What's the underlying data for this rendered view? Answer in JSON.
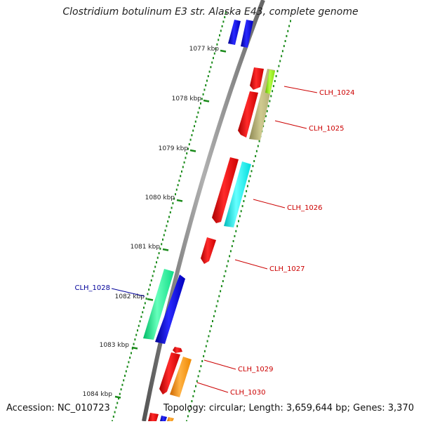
{
  "title": "Clostridium botulinum E3 str. Alaska E43, complete genome",
  "footer": {
    "accession": "Accession: NC_010723",
    "summary": "Topology: circular; Length: 3,659,644 bp; Genes: 3,370"
  },
  "scale_labels": [
    "1077 kbp",
    "1078 kbp",
    "1079 kbp",
    "1080 kbp",
    "1081 kbp",
    "1082 kbp",
    "1083 kbp",
    "1084 kbp"
  ],
  "gene_labels": [
    {
      "text": "CLH_1024",
      "color": "#cc0000"
    },
    {
      "text": "CLH_1025",
      "color": "#cc0000"
    },
    {
      "text": "CLH_1026",
      "color": "#cc0000"
    },
    {
      "text": "CLH_1027",
      "color": "#cc0000"
    },
    {
      "text": "CLH_1028",
      "color": "#000099"
    },
    {
      "text": "CLH_1029",
      "color": "#cc0000"
    },
    {
      "text": "CLH_1030",
      "color": "#cc0000"
    }
  ],
  "colors": {
    "backbone": "#808080",
    "tick_green": "#1a8a1a",
    "red": "#ee1111",
    "blue": "#1111dd",
    "olive": "#b8b37a",
    "lime": "#99ee22",
    "cyan": "#11eeee",
    "teal": "#22ee99",
    "orange": "#ff9911"
  }
}
